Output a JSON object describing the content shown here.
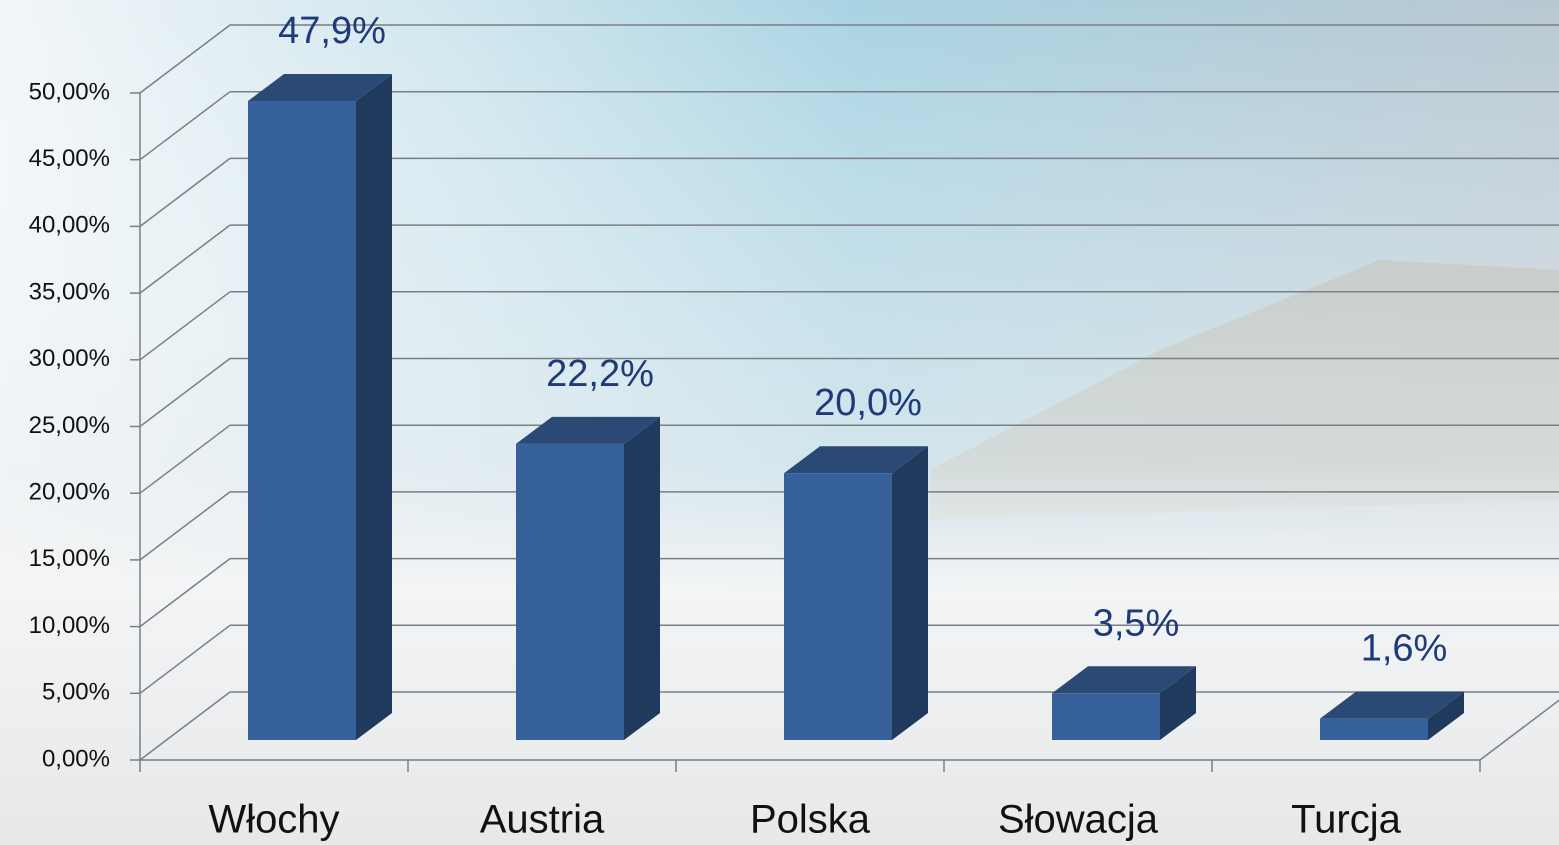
{
  "chart_data": {
    "type": "bar3d",
    "categories": [
      "Włochy",
      "Austria",
      "Polska",
      "Słowacja",
      "Turcja"
    ],
    "values": [
      47.9,
      22.2,
      20.0,
      3.5,
      1.6
    ],
    "value_labels": [
      "47,9%",
      "22,2%",
      "20,0%",
      "3,5%",
      "1,6%"
    ],
    "color": "#35609a",
    "ylim": [
      0,
      50
    ],
    "yticks": [
      {
        "value": 0,
        "label": "0,00%"
      },
      {
        "value": 5,
        "label": "5,00%"
      },
      {
        "value": 10,
        "label": "10,00%"
      },
      {
        "value": 15,
        "label": "15,00%"
      },
      {
        "value": 20,
        "label": "20,00%"
      },
      {
        "value": 25,
        "label": "25,00%"
      },
      {
        "value": 30,
        "label": "30,00%"
      },
      {
        "value": 35,
        "label": "35,00%"
      },
      {
        "value": 40,
        "label": "40,00%"
      },
      {
        "value": 45,
        "label": "45,00%"
      },
      {
        "value": 50,
        "label": "50,00%"
      }
    ],
    "grid": true
  }
}
